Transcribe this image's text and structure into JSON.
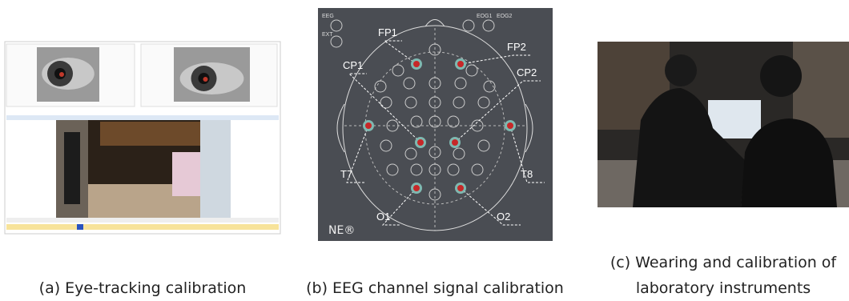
{
  "panels": [
    {
      "caption": "(a) Eye-tracking calibration"
    },
    {
      "caption": "(b) EEG channel signal calibration",
      "side_labels": [
        "EEG",
        "EXT",
        "EOG1",
        "EOG2"
      ],
      "channels": [
        "FP1",
        "FP2",
        "CP1",
        "CP2",
        "T7",
        "T8",
        "O1",
        "O2"
      ],
      "logo": "NE®"
    },
    {
      "caption": [
        "(c) Wearing and calibration of",
        "laboratory instruments"
      ]
    }
  ]
}
